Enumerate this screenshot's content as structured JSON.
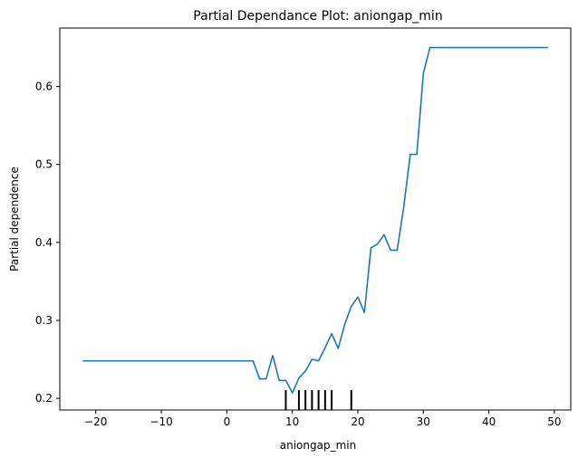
{
  "chart_data": {
    "type": "line",
    "title": "Partial Dependance Plot: aniongap_min",
    "xlabel": "aniongap_min",
    "ylabel": "Partial dependence",
    "xlim": [
      -25.5,
      52.5
    ],
    "ylim": [
      0.185,
      0.675
    ],
    "xticks": [
      -20,
      -10,
      0,
      10,
      20,
      30,
      40,
      50
    ],
    "yticks": [
      0.2,
      0.3,
      0.4,
      0.5,
      0.6
    ],
    "grid": false,
    "line_color": "#1f77b4",
    "series": [
      {
        "x": [
          -22,
          4,
          5,
          6,
          7,
          8,
          9,
          10,
          11,
          12,
          13,
          14,
          15,
          16,
          17,
          18,
          19,
          20,
          21,
          22,
          23,
          24,
          25,
          26,
          27,
          28,
          29,
          30,
          31,
          49
        ],
        "values": [
          0.248,
          0.248,
          0.225,
          0.225,
          0.255,
          0.223,
          0.223,
          0.207,
          0.226,
          0.235,
          0.25,
          0.248,
          0.265,
          0.283,
          0.264,
          0.295,
          0.318,
          0.33,
          0.31,
          0.393,
          0.398,
          0.41,
          0.39,
          0.39,
          0.445,
          0.513,
          0.513,
          0.617,
          0.65,
          0.65
        ]
      }
    ],
    "rug_x": [
      9,
      11,
      12,
      13,
      14,
      15,
      16,
      19
    ]
  }
}
